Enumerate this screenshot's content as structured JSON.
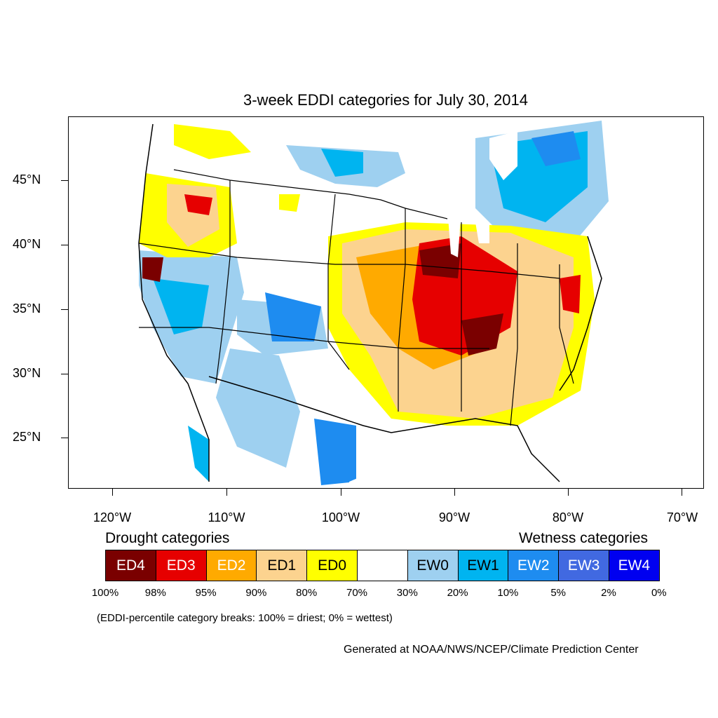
{
  "title": "3-week EDDI categories for July 30, 2014",
  "map": {
    "lat_labels": [
      "45°N",
      "40°N",
      "35°N",
      "30°N",
      "25°N"
    ],
    "lon_labels": [
      "120°W",
      "110°W",
      "100°W",
      "90°W",
      "80°W",
      "70°W"
    ]
  },
  "legend": {
    "drought_heading": "Drought categories",
    "wetness_heading": "Wetness categories",
    "categories": [
      {
        "label": "ED4",
        "color": "#7a0000",
        "text_color": "#ffffff"
      },
      {
        "label": "ED3",
        "color": "#e60000",
        "text_color": "#ffffff"
      },
      {
        "label": "ED2",
        "color": "#ffaa00",
        "text_color": "#ffffff"
      },
      {
        "label": "ED1",
        "color": "#fcd38f",
        "text_color": "#000000"
      },
      {
        "label": "ED0",
        "color": "#ffff00",
        "text_color": "#000000"
      },
      {
        "label": "",
        "color": "#ffffff",
        "text_color": "#000000"
      },
      {
        "label": "EW0",
        "color": "#9ed0f0",
        "text_color": "#000000"
      },
      {
        "label": "EW1",
        "color": "#00b4f0",
        "text_color": "#000000"
      },
      {
        "label": "EW2",
        "color": "#1e8cf0",
        "text_color": "#ffffff"
      },
      {
        "label": "EW3",
        "color": "#4169e1",
        "text_color": "#ffffff"
      },
      {
        "label": "EW4",
        "color": "#0000f0",
        "text_color": "#ffffff"
      }
    ],
    "percentiles": [
      "100%",
      "98%",
      "95%",
      "90%",
      "80%",
      "70%",
      "30%",
      "20%",
      "10%",
      "5%",
      "2%",
      "0%"
    ]
  },
  "note": "(EDDI-percentile category breaks: 100% = driest; 0% = wettest)",
  "credit": "Generated at NOAA/NWS/NCEP/Climate Prediction Center"
}
